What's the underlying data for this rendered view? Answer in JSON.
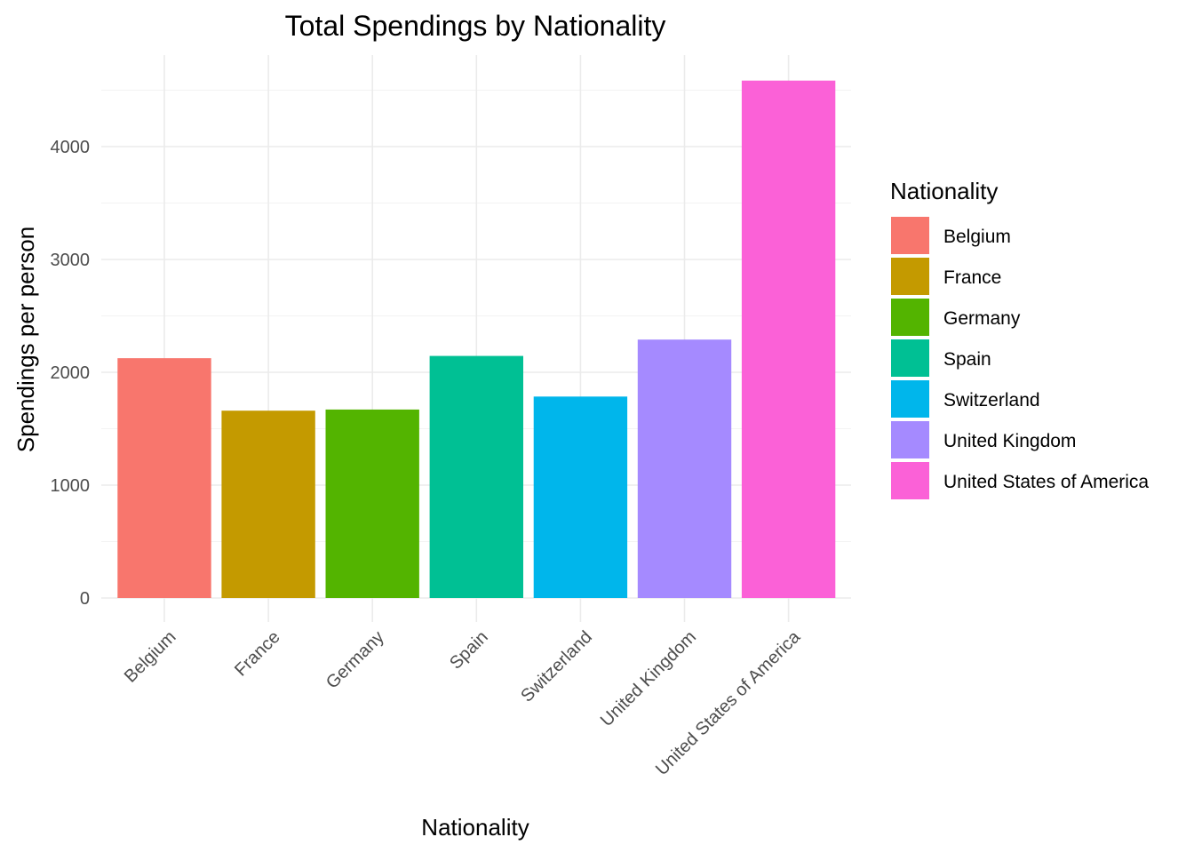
{
  "chart_data": {
    "type": "bar",
    "title": "Total Spendings by Nationality",
    "xlabel": "Nationality",
    "ylabel": "Spendings per person",
    "categories": [
      "Belgium",
      "France",
      "Germany",
      "Spain",
      "Switzerland",
      "United Kingdom",
      "United States of America"
    ],
    "values": [
      2125,
      1660,
      1670,
      2145,
      1785,
      2290,
      4585
    ],
    "colors": [
      "#F8766D",
      "#C49A00",
      "#53B400",
      "#00C094",
      "#00B6EB",
      "#A58AFF",
      "#FB61D7"
    ],
    "ylim": [
      0,
      4800
    ],
    "yticks": [
      0,
      1000,
      2000,
      3000,
      4000
    ],
    "ytick_labels": [
      "0",
      "1000",
      "2000",
      "3000",
      "4000"
    ],
    "grid": true,
    "legend": {
      "title": "Nationality",
      "placement": "right",
      "entries": [
        "Belgium",
        "France",
        "Germany",
        "Spain",
        "Switzerland",
        "United Kingdom",
        "United States of America"
      ]
    }
  }
}
